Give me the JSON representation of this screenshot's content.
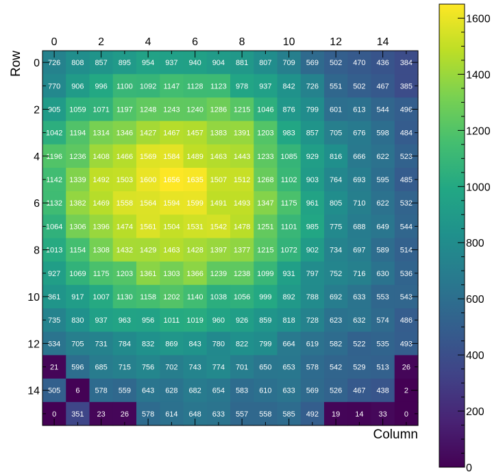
{
  "chart_data": {
    "type": "heatmap",
    "xlabel": "Column",
    "ylabel": "Row",
    "x_ticks": [
      "0",
      "2",
      "4",
      "6",
      "8",
      "10",
      "12",
      "14"
    ],
    "y_ticks": [
      "0",
      "2",
      "4",
      "6",
      "8",
      "10",
      "12",
      "14"
    ],
    "colormap": "viridis",
    "colorbar": {
      "range": [
        0,
        1650
      ],
      "ticks": [
        "0",
        "200",
        "400",
        "600",
        "800",
        "1000",
        "1200",
        "1400",
        "1600"
      ]
    },
    "values": [
      [
        726,
        808,
        857,
        895,
        954,
        937,
        940,
        904,
        881,
        807,
        709,
        569,
        502,
        470,
        436,
        384
      ],
      [
        770,
        906,
        996,
        1100,
        1092,
        1147,
        1128,
        1123,
        978,
        937,
        842,
        726,
        551,
        502,
        467,
        385
      ],
      [
        905,
        1059,
        1071,
        1197,
        1248,
        1243,
        1240,
        1286,
        1215,
        1046,
        876,
        799,
        601,
        613,
        544,
        496
      ],
      [
        1042,
        1194,
        1314,
        1346,
        1427,
        1467,
        1457,
        1383,
        1391,
        1203,
        983,
        857,
        705,
        676,
        598,
        484
      ],
      [
        1196,
        1236,
        1408,
        1466,
        1569,
        1584,
        1489,
        1463,
        1443,
        1233,
        1085,
        929,
        816,
        666,
        622,
        523
      ],
      [
        1142,
        1339,
        1492,
        1503,
        1600,
        1656,
        1635,
        1507,
        1512,
        1268,
        1102,
        903,
        764,
        693,
        595,
        485
      ],
      [
        1132,
        1382,
        1469,
        1558,
        1564,
        1594,
        1599,
        1491,
        1493,
        1347,
        1175,
        961,
        805,
        710,
        622,
        532
      ],
      [
        1064,
        1306,
        1396,
        1474,
        1561,
        1504,
        1531,
        1542,
        1478,
        1251,
        1101,
        985,
        775,
        688,
        649,
        544
      ],
      [
        1013,
        1154,
        1308,
        1432,
        1429,
        1463,
        1428,
        1397,
        1377,
        1215,
        1072,
        902,
        734,
        697,
        589,
        514
      ],
      [
        927,
        1069,
        1175,
        1203,
        1361,
        1303,
        1366,
        1239,
        1238,
        1099,
        931,
        797,
        752,
        716,
        630,
        536
      ],
      [
        861,
        917,
        1007,
        1130,
        1158,
        1202,
        1140,
        1038,
        1056,
        999,
        892,
        788,
        692,
        633,
        553,
        543
      ],
      [
        735,
        830,
        937,
        963,
        956,
        1011,
        1019,
        960,
        926,
        859,
        818,
        728,
        623,
        632,
        574,
        486
      ],
      [
        634,
        705,
        731,
        784,
        832,
        869,
        843,
        780,
        822,
        799,
        664,
        619,
        582,
        522,
        535,
        493
      ],
      [
        21,
        596,
        685,
        715,
        756,
        702,
        743,
        774,
        701,
        650,
        653,
        578,
        542,
        529,
        513,
        26
      ],
      [
        505,
        6,
        578,
        559,
        643,
        628,
        682,
        654,
        583,
        610,
        633,
        569,
        526,
        467,
        438,
        2
      ],
      [
        0,
        351,
        23,
        26,
        578,
        614,
        648,
        633,
        557,
        558,
        585,
        492,
        19,
        14,
        33,
        0
      ]
    ]
  }
}
